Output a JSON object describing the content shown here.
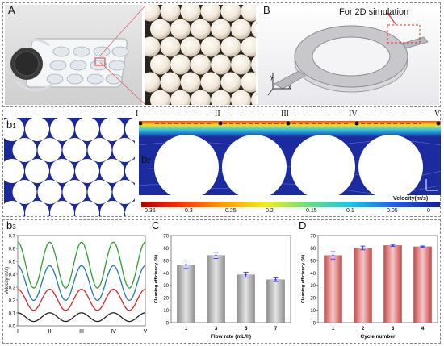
{
  "figure": {
    "panel_a_label": "A",
    "panel_b_label": "B",
    "panel_b1_label": "b",
    "panel_b1_sub": "1",
    "panel_b2_label": "b",
    "panel_b2_sub": "2",
    "panel_b3_label": "b",
    "panel_b3_sub": "3",
    "panel_c_label": "C",
    "panel_d_label": "D",
    "b_note": "For 2D simulation",
    "axis_x": "x",
    "axis_y": "y",
    "axis_z": "z",
    "b2_positions": [
      "I",
      "II",
      "III",
      "IV",
      "V"
    ],
    "colorbar": {
      "title": "Velocity(m/s)",
      "ticks": [
        "0.35",
        "0.3",
        "0.25",
        "0.2",
        "0.15",
        "0.1",
        "0.05",
        "0"
      ],
      "colors": [
        "#b30000",
        "#ff2a00",
        "#ffa000",
        "#f0ee1a",
        "#6fe07a",
        "#19c7e6",
        "#1f5fe6",
        "#11209a"
      ]
    }
  },
  "chart_data": [
    {
      "type": "line",
      "id": "b3",
      "ylabel": "Velocity(m/s)",
      "ylim": [
        0,
        0.7
      ],
      "yticks": [
        "0.0",
        "0.1",
        "0.2",
        "0.3",
        "0.4",
        "0.5",
        "0.6",
        "0.7"
      ],
      "xticks": [
        "I",
        "II",
        "III",
        "IV",
        "V"
      ],
      "series": [
        {
          "color": "#2ca02c",
          "peak": 0.67,
          "base": 0.3
        },
        {
          "color": "#1f77b4",
          "peak": 0.48,
          "base": 0.2
        },
        {
          "color": "#d62728",
          "peak": 0.29,
          "base": 0.12
        },
        {
          "color": "#222222",
          "peak": 0.1,
          "base": 0.03
        }
      ]
    },
    {
      "type": "bar",
      "id": "C",
      "categories": [
        "1",
        "3",
        "5",
        "7"
      ],
      "values": [
        46.5,
        54,
        38.5,
        34.5
      ],
      "errors": [
        3,
        2.5,
        2,
        1.5
      ],
      "xlabel": "Flow rate (mL/h)",
      "ylabel": "Cleaning efficiency (%)",
      "ylim": [
        0,
        70
      ],
      "yticks": [
        "0",
        "10",
        "20",
        "30",
        "40",
        "50",
        "60",
        "70"
      ]
    },
    {
      "type": "bar",
      "id": "D",
      "categories": [
        "1",
        "2",
        "3",
        "4"
      ],
      "values": [
        54,
        60,
        62,
        61
      ],
      "errors": [
        3,
        1.5,
        0.8,
        0.6
      ],
      "xlabel": "Cycle number",
      "ylabel": "Cleaning efficiency (%)",
      "ylim": [
        0,
        70
      ],
      "yticks": [
        "0",
        "10",
        "20",
        "30",
        "40",
        "50",
        "60",
        "70"
      ]
    }
  ]
}
